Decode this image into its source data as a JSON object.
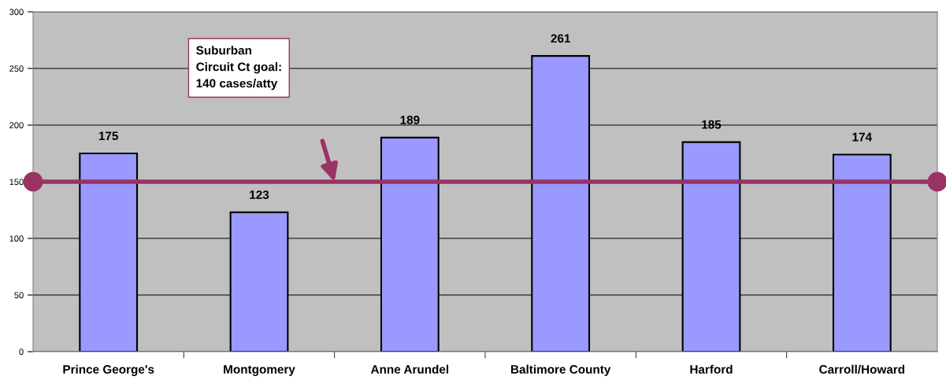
{
  "chart_data": {
    "type": "bar",
    "categories": [
      "Prince George's",
      "Montgomery",
      "Anne Arundel",
      "Baltimore County",
      "Harford",
      "Carroll/Howard"
    ],
    "values": [
      175,
      123,
      189,
      261,
      185,
      174
    ],
    "color": "#9999ff",
    "ylim": [
      0,
      300
    ],
    "yticks": [
      0,
      50,
      100,
      150,
      200,
      250,
      300
    ],
    "grid": "y",
    "data_labels": true,
    "ref_lines": [
      {
        "axis": "y",
        "value": 150,
        "label": null,
        "color": "#993366",
        "line_style": "solid"
      }
    ],
    "annotations": [
      "Suburban\nCircuit Ct goal:\n140 cases/atty"
    ]
  }
}
